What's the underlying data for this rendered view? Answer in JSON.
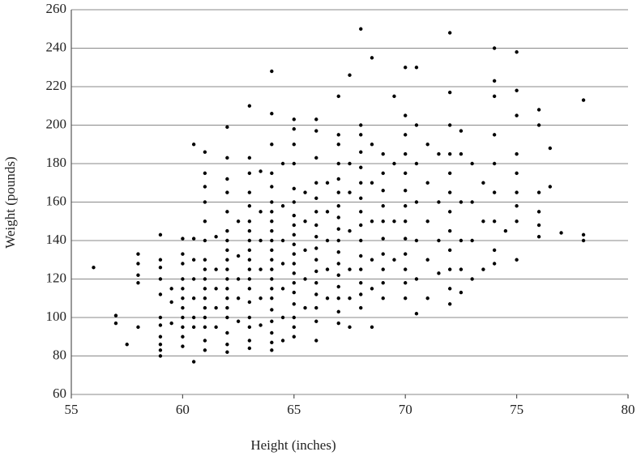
{
  "chart_data": {
    "type": "scatter",
    "xlabel": "Height (inches)",
    "ylabel": "Weight (pounds)",
    "color": "#000000",
    "grid": true,
    "xlim": [
      55,
      80
    ],
    "ylim": [
      60,
      260
    ],
    "xticks": [
      55,
      60,
      65,
      70,
      75,
      80
    ],
    "yticks": [
      60,
      80,
      100,
      120,
      140,
      160,
      180,
      200,
      220,
      240,
      260
    ],
    "x": [
      56,
      57,
      57,
      57.5,
      58,
      58,
      58,
      58,
      58,
      59,
      59,
      59,
      59,
      59,
      59,
      59,
      59,
      59,
      59,
      59,
      59.5,
      59.5,
      59.5,
      60,
      60,
      60,
      60,
      60,
      60,
      60,
      60,
      60,
      60,
      60,
      60.5,
      60.5,
      60.5,
      60.5,
      60.5,
      60.5,
      60.5,
      60.5,
      61,
      61,
      61,
      61,
      61,
      61,
      61,
      61,
      61,
      61,
      61,
      61,
      61,
      61,
      61,
      61,
      61.5,
      61.5,
      61.5,
      61.5,
      61.5,
      62,
      62,
      62,
      62,
      62,
      62,
      62,
      62,
      62,
      62,
      62,
      62,
      62,
      62,
      62,
      62,
      62,
      62,
      62.5,
      62.5,
      62.5,
      62.5,
      62.5,
      63,
      63,
      63,
      63,
      63,
      63,
      63,
      63,
      63,
      63,
      63,
      63,
      63,
      63,
      63,
      63,
      63,
      63,
      63.5,
      63.5,
      63.5,
      63.5,
      63.5,
      63.5,
      64,
      64,
      64,
      64,
      64,
      64,
      64,
      64,
      64,
      64,
      64,
      64,
      64,
      64,
      64,
      64,
      64,
      64,
      64,
      64,
      64,
      64.5,
      64.5,
      64.5,
      64.5,
      64.5,
      64.5,
      64.5,
      65,
      65,
      65,
      65,
      65,
      65,
      65,
      65,
      65,
      65,
      65,
      65,
      65,
      65,
      65,
      65,
      65,
      65,
      65,
      65.5,
      65.5,
      65.5,
      65.5,
      65.5,
      66,
      66,
      66,
      66,
      66,
      66,
      66,
      66,
      66,
      66,
      66,
      66,
      66,
      66,
      66,
      66,
      66.5,
      66.5,
      66.5,
      66.5,
      66.5,
      67,
      67,
      67,
      67,
      67,
      67,
      67,
      67,
      67,
      67,
      67,
      67,
      67,
      67,
      67,
      67,
      67,
      67.5,
      67.5,
      67.5,
      67.5,
      67.5,
      67.5,
      67.5,
      68,
      68,
      68,
      68,
      68,
      68,
      68,
      68,
      68,
      68,
      68,
      68,
      68,
      68,
      68,
      68.5,
      68.5,
      68.5,
      68.5,
      68.5,
      68.5,
      68.5,
      69,
      69,
      69,
      69,
      69,
      69,
      69,
      69,
      69,
      69,
      69.5,
      69.5,
      69.5,
      69.5,
      70,
      70,
      70,
      70,
      70,
      70,
      70,
      70,
      70,
      70,
      70,
      70,
      70,
      70.5,
      70.5,
      70.5,
      70.5,
      70.5,
      70.5,
      70.5,
      71,
      71,
      71,
      71,
      71,
      71.5,
      71.5,
      71.5,
      71.5,
      72,
      72,
      72,
      72,
      72,
      72,
      72,
      72,
      72,
      72,
      72,
      72,
      72.5,
      72.5,
      72.5,
      72.5,
      72.5,
      72.5,
      73,
      73,
      73,
      73,
      73.5,
      73.5,
      73.5,
      74,
      74,
      74,
      74,
      74,
      74,
      74,
      74,
      74,
      74.5,
      75,
      75,
      75,
      75,
      75,
      75,
      75,
      75,
      75,
      76,
      76,
      76,
      76,
      76,
      76,
      76.5,
      76.5,
      77,
      78,
      78,
      78
    ],
    "values": [
      126,
      97,
      101,
      86,
      95,
      118,
      122,
      128,
      133,
      80,
      83,
      86,
      90,
      96,
      100,
      112,
      120,
      126,
      130,
      143,
      97,
      108,
      115,
      85,
      90,
      95,
      100,
      105,
      110,
      115,
      120,
      128,
      133,
      141,
      77,
      95,
      100,
      110,
      120,
      130,
      141,
      190,
      83,
      88,
      95,
      100,
      105,
      110,
      115,
      120,
      125,
      130,
      140,
      150,
      160,
      168,
      175,
      186,
      95,
      105,
      115,
      125,
      142,
      82,
      86,
      92,
      100,
      105,
      110,
      115,
      120,
      125,
      130,
      135,
      140,
      145,
      155,
      165,
      172,
      183,
      199,
      98,
      110,
      120,
      132,
      150,
      84,
      88,
      95,
      100,
      108,
      115,
      120,
      125,
      130,
      135,
      140,
      145,
      150,
      158,
      165,
      175,
      183,
      210,
      96,
      110,
      125,
      140,
      155,
      176,
      83,
      87,
      92,
      98,
      104,
      110,
      115,
      120,
      125,
      130,
      135,
      140,
      145,
      150,
      155,
      160,
      168,
      175,
      190,
      206,
      228,
      88,
      100,
      115,
      128,
      140,
      158,
      180,
      90,
      95,
      100,
      107,
      113,
      118,
      123,
      128,
      133,
      138,
      143,
      148,
      153,
      160,
      167,
      180,
      190,
      198,
      203,
      105,
      120,
      135,
      150,
      165,
      88,
      98,
      105,
      112,
      118,
      124,
      130,
      136,
      142,
      148,
      155,
      162,
      170,
      183,
      197,
      203,
      110,
      125,
      140,
      155,
      170,
      97,
      103,
      110,
      116,
      122,
      128,
      134,
      140,
      146,
      152,
      158,
      165,
      172,
      180,
      190,
      195,
      215,
      95,
      110,
      125,
      145,
      165,
      180,
      226,
      105,
      112,
      118,
      125,
      132,
      140,
      148,
      155,
      162,
      170,
      178,
      186,
      195,
      200,
      250,
      95,
      115,
      130,
      150,
      170,
      190,
      235,
      110,
      118,
      125,
      133,
      141,
      150,
      158,
      166,
      175,
      185,
      130,
      150,
      180,
      215,
      110,
      118,
      125,
      133,
      141,
      150,
      158,
      166,
      175,
      185,
      195,
      205,
      230,
      102,
      120,
      140,
      160,
      180,
      200,
      230,
      110,
      130,
      150,
      170,
      190,
      123,
      140,
      160,
      185,
      107,
      115,
      125,
      135,
      145,
      155,
      165,
      175,
      185,
      200,
      217,
      248,
      113,
      125,
      140,
      160,
      185,
      197,
      120,
      140,
      160,
      180,
      125,
      150,
      170,
      128,
      135,
      150,
      165,
      180,
      195,
      215,
      223,
      240,
      145,
      130,
      150,
      158,
      165,
      175,
      185,
      205,
      218,
      238,
      142,
      148,
      155,
      165,
      200,
      208,
      168,
      188,
      144,
      140,
      143,
      213
    ]
  }
}
